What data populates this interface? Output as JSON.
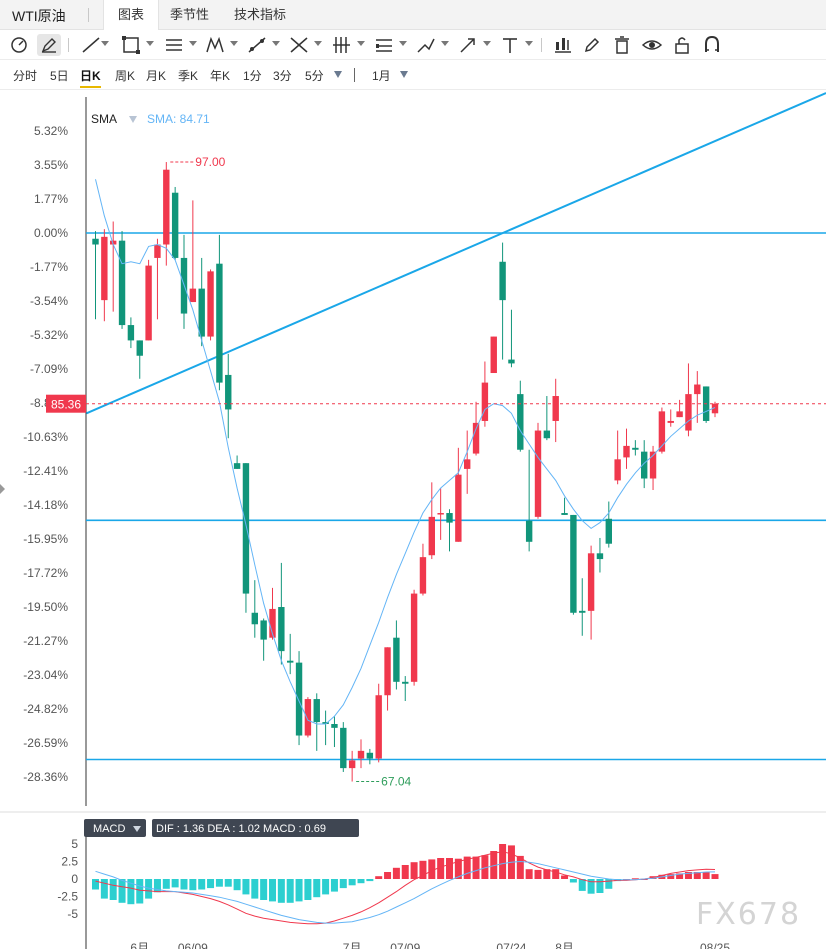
{
  "tabbar": {
    "title": "WTI原油",
    "tabs": [
      "图表",
      "季节性",
      "技术指标"
    ]
  },
  "periods": {
    "items": [
      "分时",
      "5日",
      "日K",
      "周K",
      "月K",
      "季K",
      "年K",
      "1分",
      "3分",
      "5分"
    ],
    "active": "日K",
    "range": "1月"
  },
  "legend": {
    "sma_label": "SMA",
    "sma_value": "SMA: 84.71"
  },
  "macd_panel": {
    "label": "MACD",
    "readout": "DIF : 1.36  DEA : 1.02  MACD : 0.69"
  },
  "watermark": "FX678",
  "colors": {
    "up": "#f0384d",
    "down": "#11957a",
    "sma": "#64b5f6",
    "hline": "#1aa7e8",
    "macd_up": "#f0384d",
    "macd_down": "#2ccfd0",
    "dif": "#f0384d",
    "dea": "#64b5f6"
  },
  "chart_data": [
    {
      "type": "candlestick",
      "title": "WTI原油",
      "period": "日K",
      "ylim_percent": [
        -29.5,
        6.5
      ],
      "y_ticks_percent": [
        "5.32%",
        "3.55%",
        "1.77%",
        "0.00%",
        "-1.77%",
        "-3.54%",
        "-5.32%",
        "-7.09%",
        "-8.86%",
        "-10.63%",
        "-12.41%",
        "-14.18%",
        "-15.95%",
        "-17.72%",
        "-19.50%",
        "-21.27%",
        "-23.04%",
        "-24.82%",
        "-26.59%",
        "-28.36%"
      ],
      "x_tick_labels": [
        "6月",
        "06/09",
        "7月",
        "07/09",
        "07/24",
        "8月",
        "08/25"
      ],
      "last_price": "85.36",
      "high_label": "97.00",
      "low_label": "67.04",
      "horizontal_lines_percent": [
        0.0,
        -14.98,
        -27.45
      ],
      "trend_line_percent": [
        [
          0,
          -9.4
        ],
        [
          83,
          7.3
        ]
      ],
      "candles_percent": [
        [
          -0.3,
          -0.6,
          0.1,
          -4.5
        ],
        [
          -3.5,
          -0.2,
          0.2,
          -4.6
        ],
        [
          -0.6,
          -0.4,
          0.6,
          -4.1
        ],
        [
          -0.4,
          -4.8,
          0.1,
          -5.0
        ],
        [
          -4.8,
          -5.6,
          -4.4,
          -6.0
        ],
        [
          -5.6,
          -6.4,
          -5.6,
          -7.6
        ],
        [
          -5.6,
          -1.7,
          -1.4,
          -5.6
        ],
        [
          -1.3,
          -0.6,
          -0.3,
          -4.5
        ],
        [
          -0.6,
          3.3,
          3.7,
          -1.7
        ],
        [
          2.1,
          -1.3,
          2.4,
          -1.4
        ],
        [
          -1.3,
          -4.2,
          -0.1,
          -5.0
        ],
        [
          -3.6,
          -2.9,
          1.7,
          -3.6
        ],
        [
          -2.9,
          -5.4,
          -1.3,
          -5.9
        ],
        [
          -5.4,
          -2.0,
          -1.9,
          -5.6
        ],
        [
          -1.6,
          -7.8,
          -0.1,
          -8.2
        ],
        [
          -7.4,
          -9.2,
          -6.3,
          -10.7
        ],
        [
          -12.0,
          -12.3,
          -11.6,
          -12.3
        ],
        [
          -12.0,
          -18.8,
          -12.0,
          -19.8
        ],
        [
          -19.8,
          -20.4,
          -18.1,
          -21.1
        ],
        [
          -20.2,
          -21.2,
          -20.1,
          -22.3
        ],
        [
          -21.1,
          -19.6,
          -18.5,
          -21.2
        ],
        [
          -19.5,
          -21.8,
          -17.2,
          -22.5
        ],
        [
          -22.3,
          -22.4,
          -20.9,
          -23.0
        ],
        [
          -22.4,
          -26.2,
          -21.8,
          -26.7
        ],
        [
          -26.2,
          -24.3,
          -24.2,
          -26.3
        ],
        [
          -24.3,
          -25.5,
          -24.0,
          -27.0
        ],
        [
          -25.5,
          -25.6,
          -24.9,
          -26.7
        ],
        [
          -25.6,
          -25.8,
          -25.2,
          -26.8
        ],
        [
          -25.8,
          -27.9,
          -25.5,
          -28.1
        ],
        [
          -27.9,
          -27.5,
          -27.0,
          -28.6
        ],
        [
          -27.4,
          -27.0,
          -26.4,
          -27.9
        ],
        [
          -27.1,
          -27.4,
          -26.9,
          -27.7
        ],
        [
          -27.4,
          -24.1,
          -23.5,
          -27.6
        ],
        [
          -24.1,
          -21.6,
          -21.6,
          -24.9
        ],
        [
          -21.1,
          -23.4,
          -20.2,
          -23.8
        ],
        [
          -23.4,
          -23.5,
          -23.1,
          -24.4
        ],
        [
          -23.4,
          -18.8,
          -18.6,
          -23.6
        ],
        [
          -18.8,
          -16.9,
          -16.2,
          -18.9
        ],
        [
          -16.8,
          -14.8,
          -13.0,
          -17.0
        ],
        [
          -14.6,
          -14.6,
          -13.3,
          -16.0
        ],
        [
          -14.6,
          -15.1,
          -14.4,
          -16.6
        ],
        [
          -16.1,
          -12.6,
          -11.2,
          -16.1
        ],
        [
          -12.3,
          -11.8,
          -10.3,
          -13.6
        ],
        [
          -11.5,
          -9.9,
          -8.8,
          -11.6
        ],
        [
          -9.8,
          -7.8,
          -6.7,
          -10.1
        ],
        [
          -7.3,
          -5.4,
          -5.4,
          -7.3
        ],
        [
          -1.5,
          -3.5,
          -0.5,
          -6.6
        ],
        [
          -6.6,
          -6.8,
          -4.0,
          -7.0
        ],
        [
          -8.4,
          -11.3,
          -7.7,
          -11.4
        ],
        [
          -15.0,
          -16.1,
          -11.3,
          -16.6
        ],
        [
          -14.8,
          -10.3,
          -9.9,
          -14.9
        ],
        [
          -10.3,
          -10.7,
          -8.5,
          -10.8
        ],
        [
          -9.8,
          -8.5,
          -7.6,
          -10.9
        ],
        [
          -14.6,
          -14.7,
          -13.8,
          -14.7
        ],
        [
          -14.7,
          -19.8,
          -14.7,
          -19.9
        ],
        [
          -19.7,
          -19.8,
          -18.0,
          -21.0
        ],
        [
          -19.7,
          -16.7,
          -16.3,
          -21.2
        ],
        [
          -16.7,
          -17.0,
          -15.9,
          -17.7
        ],
        [
          -14.9,
          -16.2,
          -14.0,
          -16.4
        ],
        [
          -12.9,
          -11.8,
          -10.3,
          -13.1
        ],
        [
          -11.7,
          -11.1,
          -10.2,
          -12.3
        ],
        [
          -11.2,
          -11.3,
          -10.8,
          -11.6
        ],
        [
          -11.4,
          -12.8,
          -10.8,
          -13.3
        ],
        [
          -12.8,
          -11.4,
          -11.1,
          -13.4
        ],
        [
          -11.4,
          -9.3,
          -9.1,
          -11.5
        ],
        [
          -9.9,
          -9.8,
          -9.2,
          -10.1
        ],
        [
          -9.6,
          -9.3,
          -8.7,
          -9.6
        ],
        [
          -10.3,
          -8.4,
          -6.8,
          -10.6
        ],
        [
          -8.4,
          -7.9,
          -7.2,
          -9.9
        ],
        [
          -8.0,
          -9.8,
          -8.0,
          -9.9
        ],
        [
          -9.4,
          -8.9,
          -8.8,
          -9.6
        ]
      ],
      "sma_period_note": "SMA",
      "sma_percent": [
        2.8,
        0.9,
        -0.6,
        -1.6,
        -1.5,
        -1.6,
        -0.7,
        -0.6,
        -0.8,
        -1.4,
        -2.7,
        -4.0,
        -5.6,
        -7.2,
        -8.8,
        -11.2,
        -13.3,
        -15.2,
        -17.3,
        -19.3,
        -20.9,
        -22.3,
        -23.4,
        -24.4,
        -25.4,
        -25.6,
        -25.6,
        -25.2,
        -24.6,
        -23.7,
        -22.7,
        -21.5,
        -20.3,
        -19.0,
        -17.8,
        -16.7,
        -15.6,
        -14.6,
        -13.9,
        -13.3,
        -12.9,
        -12.5,
        -11.4,
        -10.2,
        -9.2,
        -8.9,
        -9.0,
        -9.4,
        -10.3,
        -11.0,
        -11.7,
        -12.3,
        -12.9,
        -13.7,
        -14.4,
        -15.0,
        -15.4,
        -15.1,
        -14.6,
        -13.8,
        -13.1,
        -12.5,
        -12.0,
        -11.6,
        -11.1,
        -10.6,
        -10.2,
        -9.8,
        -9.5,
        -9.3,
        -9.1
      ]
    },
    {
      "type": "bar",
      "title": "MACD",
      "ylim": [
        -7,
        7
      ],
      "y_ticks": [
        "5",
        "2.5",
        "0",
        "-2.5",
        "-5"
      ],
      "dif": 1.36,
      "dea": 1.02,
      "macd": 0.69,
      "histogram": [
        -1.5,
        -2.8,
        -3.0,
        -3.4,
        -3.6,
        -3.5,
        -2.8,
        -1.9,
        -1.4,
        -1.2,
        -1.5,
        -1.6,
        -1.5,
        -1.3,
        -1.1,
        -1.1,
        -1.6,
        -2.2,
        -2.8,
        -3.0,
        -3.2,
        -3.4,
        -3.4,
        -3.2,
        -3.0,
        -2.6,
        -2.2,
        -1.8,
        -1.3,
        -0.9,
        -0.6,
        -0.3,
        0.4,
        1.0,
        1.6,
        2.0,
        2.4,
        2.6,
        2.8,
        3.0,
        3.0,
        2.9,
        3.2,
        3.2,
        3.4,
        4.0,
        5.0,
        4.8,
        3.3,
        1.4,
        1.3,
        1.4,
        1.4,
        0.5,
        -0.5,
        -1.7,
        -2.1,
        -2.0,
        -1.4,
        -0.3,
        0.0,
        0.1,
        0.0,
        0.4,
        0.6,
        0.7,
        0.8,
        1.0,
        1.0,
        1.0,
        0.7
      ],
      "dif_line": [
        -0.3,
        -0.6,
        -0.9,
        -1.1,
        -1.3,
        -1.6,
        -1.7,
        -1.8,
        -1.8,
        -1.8,
        -2.0,
        -2.2,
        -2.5,
        -2.8,
        -3.2,
        -3.7,
        -4.3,
        -4.9,
        -5.3,
        -5.6,
        -5.8,
        -6.0,
        -6.2,
        -6.3,
        -6.4,
        -6.4,
        -6.3,
        -6.0,
        -5.6,
        -5.2,
        -4.7,
        -4.1,
        -3.4,
        -2.6,
        -1.8,
        -0.9,
        -0.1,
        0.5,
        1.2,
        1.7,
        2.1,
        2.5,
        2.8,
        3.1,
        3.4,
        3.7,
        3.9,
        3.6,
        3.0,
        2.3,
        1.7,
        1.3,
        1.0,
        0.6,
        0.3,
        -0.1,
        -0.4,
        -0.4,
        -0.3,
        -0.2,
        -0.2,
        -0.1,
        0.0,
        0.2,
        0.5,
        0.8,
        1.0,
        1.2,
        1.3,
        1.4,
        1.36
      ],
      "dea_line": [
        1.1,
        0.7,
        0.3,
        -0.2,
        -0.6,
        -1.0,
        -1.3,
        -1.5,
        -1.7,
        -1.8,
        -1.9,
        -2.0,
        -2.2,
        -2.4,
        -2.6,
        -2.9,
        -3.2,
        -3.6,
        -4.0,
        -4.4,
        -4.8,
        -5.2,
        -5.5,
        -5.8,
        -6.0,
        -6.2,
        -6.3,
        -6.3,
        -6.2,
        -6.1,
        -5.8,
        -5.5,
        -5.1,
        -4.6,
        -4.0,
        -3.4,
        -2.8,
        -2.1,
        -1.4,
        -0.8,
        -0.2,
        0.3,
        0.8,
        1.2,
        1.6,
        1.9,
        2.2,
        2.4,
        2.5,
        2.4,
        2.2,
        1.9,
        1.6,
        1.3,
        1.0,
        0.7,
        0.4,
        0.2,
        0.0,
        -0.1,
        -0.1,
        -0.1,
        0.0,
        0.1,
        0.3,
        0.5,
        0.7,
        0.8,
        0.9,
        1.0,
        1.02
      ]
    }
  ]
}
